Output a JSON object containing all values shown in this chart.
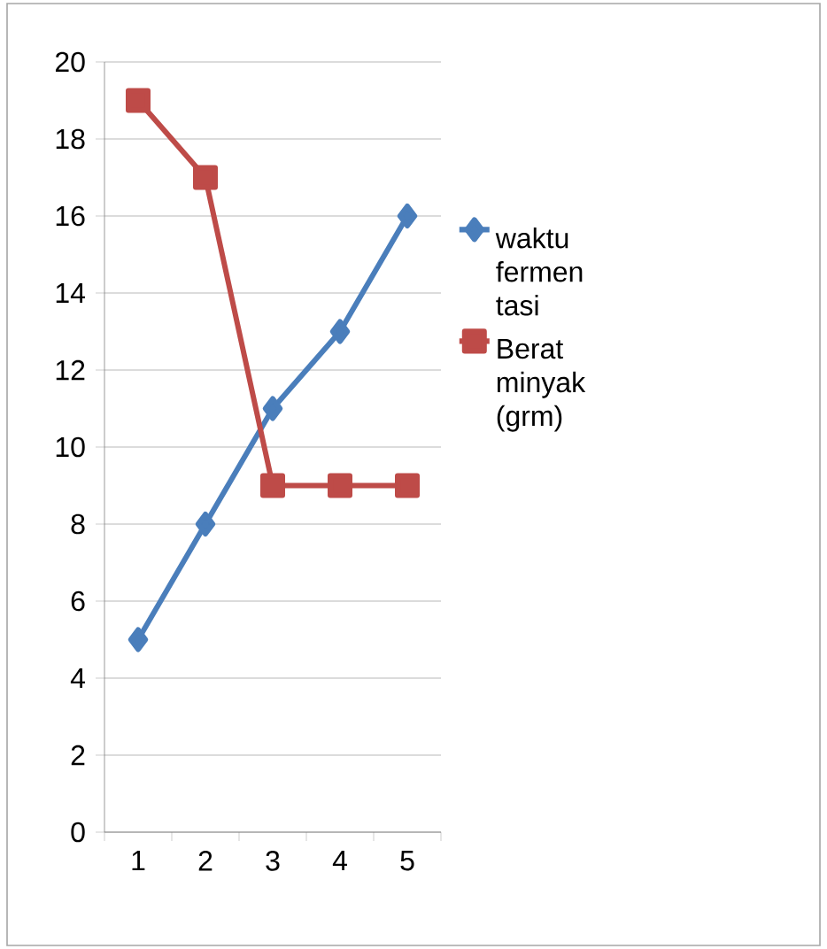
{
  "chart_data": {
    "type": "line",
    "categories": [
      "1",
      "2",
      "3",
      "4",
      "5"
    ],
    "series": [
      {
        "name": "waktu fermen tasi",
        "color": "#4a7ebb",
        "marker": "diamond",
        "values": [
          5,
          8,
          11,
          13,
          16
        ]
      },
      {
        "name": "Berat minyak (grm)",
        "color": "#be4b48",
        "marker": "square",
        "values": [
          19,
          17,
          9,
          9,
          9
        ]
      }
    ],
    "ylim": [
      0,
      20
    ],
    "yticks": [
      0,
      2,
      4,
      6,
      8,
      10,
      12,
      14,
      16,
      18,
      20
    ],
    "grid": "y",
    "legend": "right"
  }
}
